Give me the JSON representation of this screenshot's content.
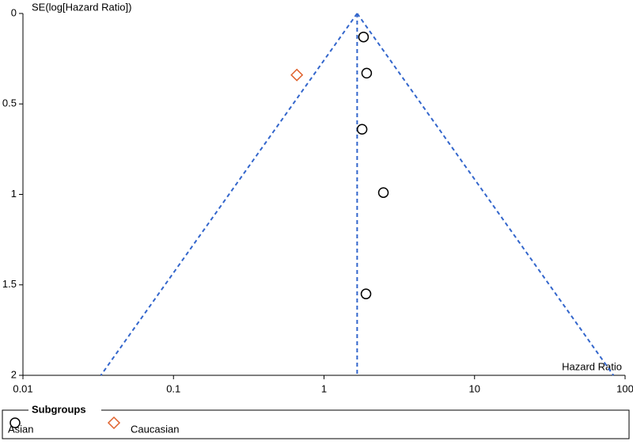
{
  "chart_data": {
    "type": "scatter",
    "y_axis_label": "SE(log[Hazard Ratio])",
    "x_axis_label": "Hazard Ratio",
    "xscale": "log",
    "xlim": [
      0.01,
      100
    ],
    "xticks": [
      0.01,
      0.1,
      1,
      10,
      100
    ],
    "ylim": [
      0,
      2
    ],
    "yticks": [
      0,
      0.5,
      1,
      1.5,
      2
    ],
    "y_inverted": true,
    "pooled_estimate": 1.66,
    "funnel_z": 1.96,
    "funnel_color": "#3366cc",
    "legend_title": "Subgroups",
    "legend_position": "bottom",
    "series": [
      {
        "name": "Asian",
        "color": "#000000",
        "marker": "circle",
        "x": [
          1.83,
          1.92,
          1.79,
          2.48,
          1.9
        ],
        "values": [
          0.13,
          0.33,
          0.64,
          0.99,
          1.55
        ]
      },
      {
        "name": "Caucasian",
        "color": "#e0622d",
        "marker": "diamond",
        "x": [
          0.66
        ],
        "values": [
          0.34
        ]
      }
    ]
  }
}
